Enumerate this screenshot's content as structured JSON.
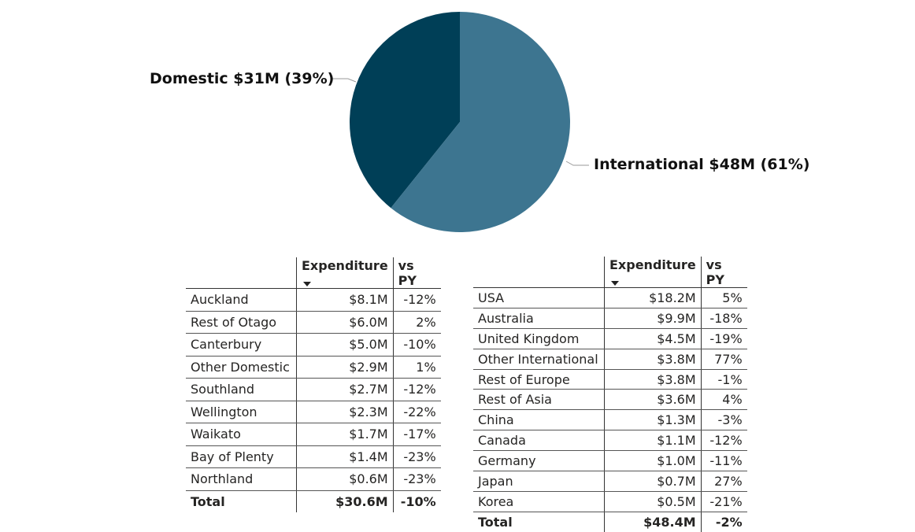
{
  "chart_data": [
    {
      "type": "pie",
      "slices": [
        {
          "label": "Domestic $31M (39%)",
          "name": "Domestic",
          "value": 31,
          "percent": 39,
          "color": "#003F57"
        },
        {
          "label": "International $48M (61%)",
          "name": "International",
          "value": 48,
          "percent": 61,
          "color": "#3D7590"
        }
      ],
      "title": "",
      "legend": "none"
    },
    {
      "type": "table",
      "columns": [
        "",
        "Expenditure",
        "vs PY"
      ],
      "sort_column": "Expenditure",
      "rows": [
        {
          "name": "Auckland",
          "expenditure": "$8.1M",
          "vs_py": "-12%"
        },
        {
          "name": "Rest of Otago",
          "expenditure": "$6.0M",
          "vs_py": "2%"
        },
        {
          "name": "Canterbury",
          "expenditure": "$5.0M",
          "vs_py": "-10%"
        },
        {
          "name": "Other Domestic",
          "expenditure": "$2.9M",
          "vs_py": "1%"
        },
        {
          "name": "Southland",
          "expenditure": "$2.7M",
          "vs_py": "-12%"
        },
        {
          "name": "Wellington",
          "expenditure": "$2.3M",
          "vs_py": "-22%"
        },
        {
          "name": "Waikato",
          "expenditure": "$1.7M",
          "vs_py": "-17%"
        },
        {
          "name": "Bay of Plenty",
          "expenditure": "$1.4M",
          "vs_py": "-23%"
        },
        {
          "name": "Northland",
          "expenditure": "$0.6M",
          "vs_py": "-23%"
        }
      ],
      "total": {
        "name": "Total",
        "expenditure": "$30.6M",
        "vs_py": "-10%"
      }
    },
    {
      "type": "table",
      "columns": [
        "",
        "Expenditure",
        "vs PY"
      ],
      "sort_column": "Expenditure",
      "rows": [
        {
          "name": "USA",
          "expenditure": "$18.2M",
          "vs_py": "5%"
        },
        {
          "name": "Australia",
          "expenditure": "$9.9M",
          "vs_py": "-18%"
        },
        {
          "name": "United Kingdom",
          "expenditure": "$4.5M",
          "vs_py": "-19%"
        },
        {
          "name": "Other International",
          "expenditure": "$3.8M",
          "vs_py": "77%"
        },
        {
          "name": "Rest of Europe",
          "expenditure": "$3.8M",
          "vs_py": "-1%"
        },
        {
          "name": "Rest of Asia",
          "expenditure": "$3.6M",
          "vs_py": "4%"
        },
        {
          "name": "China",
          "expenditure": "$1.3M",
          "vs_py": "-3%"
        },
        {
          "name": "Canada",
          "expenditure": "$1.1M",
          "vs_py": "-12%"
        },
        {
          "name": "Germany",
          "expenditure": "$1.0M",
          "vs_py": "-11%"
        },
        {
          "name": "Japan",
          "expenditure": "$0.7M",
          "vs_py": "27%"
        },
        {
          "name": "Korea",
          "expenditure": "$0.5M",
          "vs_py": "-21%"
        }
      ],
      "total": {
        "name": "Total",
        "expenditure": "$48.4M",
        "vs_py": "-2%"
      }
    }
  ]
}
